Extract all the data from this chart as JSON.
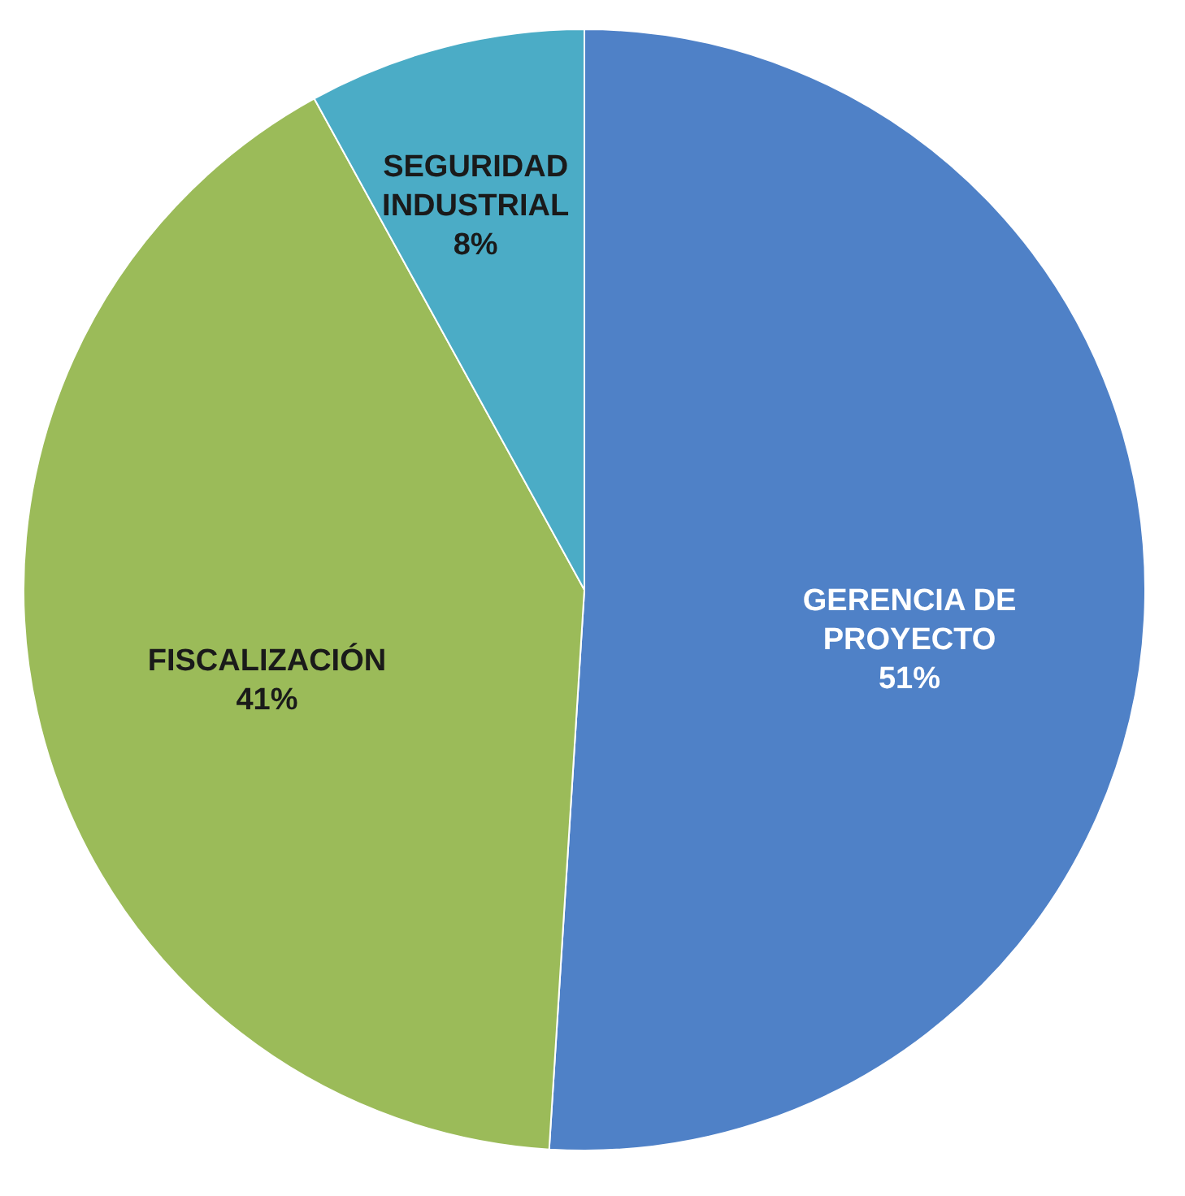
{
  "chart_data": {
    "type": "pie",
    "categories": [
      "GERENCIA DE PROYECTO",
      "FISCALIZACIÓN",
      "SEGURIDAD INDUSTRIAL"
    ],
    "values": [
      51,
      41,
      8
    ],
    "colors": [
      "#4f81c7",
      "#9bbb59",
      "#4bacc6"
    ],
    "value_labels": [
      "51%",
      "41%",
      "8%"
    ],
    "legend": false
  }
}
